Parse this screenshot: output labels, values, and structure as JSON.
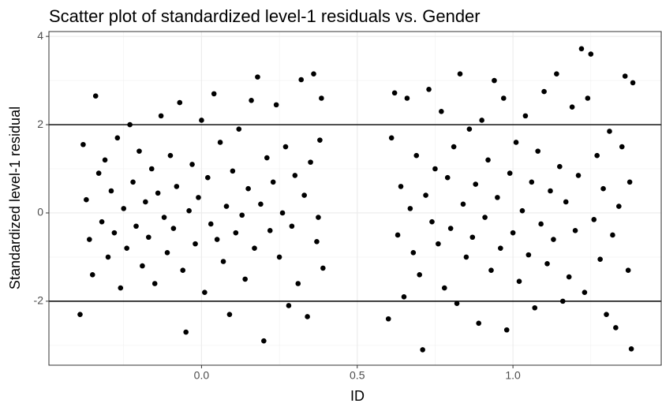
{
  "chart_data": {
    "type": "scatter",
    "title": "Scatter plot of standardized level-1 residuals vs. Gender",
    "x_label": "ID",
    "y_label": "Standardized level-1 residual",
    "color": "#000000",
    "grid": true,
    "xlim": [
      -0.49,
      1.476
    ],
    "ylim": [
      -3.45,
      4.11
    ],
    "xticks": [
      {
        "value": 0,
        "label": "0.0"
      },
      0.5,
      {
        "value": 1,
        "label": "1.0"
      }
    ],
    "yticks": [
      -2,
      0,
      2,
      4
    ],
    "xminor": [
      -0.25,
      0.25,
      0.75,
      1.25
    ],
    "yminor": [
      -3,
      -1,
      1,
      3
    ],
    "hlines": [
      -2,
      2
    ],
    "x": [
      -0.39,
      -0.38,
      -0.37,
      -0.36,
      -0.35,
      -0.34,
      -0.33,
      -0.32,
      -0.31,
      -0.3,
      -0.29,
      -0.28,
      -0.27,
      -0.26,
      -0.25,
      -0.24,
      -0.23,
      -0.22,
      -0.21,
      -0.2,
      -0.19,
      -0.18,
      -0.17,
      -0.16,
      -0.15,
      -0.14,
      -0.13,
      -0.12,
      -0.11,
      -0.1,
      -0.09,
      -0.08,
      -0.07,
      -0.06,
      -0.05,
      -0.04,
      -0.03,
      -0.02,
      -0.01,
      0.0,
      0.01,
      0.02,
      0.03,
      0.04,
      0.05,
      0.06,
      0.07,
      0.08,
      0.09,
      0.1,
      0.11,
      0.12,
      0.13,
      0.14,
      0.15,
      0.16,
      0.17,
      0.18,
      0.19,
      0.2,
      0.21,
      0.22,
      0.23,
      0.24,
      0.25,
      0.26,
      0.27,
      0.28,
      0.29,
      0.3,
      0.31,
      0.32,
      0.33,
      0.34,
      0.35,
      0.36,
      0.37,
      0.38,
      0.39,
      0.385,
      0.375,
      0.6,
      0.61,
      0.62,
      0.63,
      0.64,
      0.65,
      0.66,
      0.67,
      0.68,
      0.69,
      0.7,
      0.71,
      0.72,
      0.73,
      0.74,
      0.75,
      0.76,
      0.77,
      0.78,
      0.79,
      0.8,
      0.81,
      0.82,
      0.83,
      0.84,
      0.85,
      0.86,
      0.87,
      0.88,
      0.89,
      0.9,
      0.91,
      0.92,
      0.93,
      0.94,
      0.95,
      0.96,
      0.97,
      0.98,
      0.99,
      1.0,
      1.01,
      1.02,
      1.03,
      1.04,
      1.05,
      1.06,
      1.07,
      1.08,
      1.09,
      1.1,
      1.11,
      1.12,
      1.13,
      1.14,
      1.15,
      1.16,
      1.17,
      1.18,
      1.19,
      1.2,
      1.21,
      1.22,
      1.23,
      1.24,
      1.25,
      1.26,
      1.27,
      1.28,
      1.29,
      1.3,
      1.31,
      1.32,
      1.33,
      1.34,
      1.35,
      1.36,
      1.37,
      1.38,
      1.385,
      1.375
    ],
    "y": [
      -2.3,
      1.55,
      0.3,
      -0.6,
      -1.4,
      2.65,
      0.9,
      -0.2,
      1.2,
      -1.0,
      0.5,
      -0.45,
      1.7,
      -1.7,
      0.1,
      -0.8,
      2.0,
      0.7,
      -0.3,
      1.4,
      -1.2,
      0.25,
      -0.55,
      1.0,
      -1.6,
      0.45,
      2.2,
      -0.1,
      -0.9,
      1.3,
      -0.35,
      0.6,
      2.5,
      -1.3,
      -2.7,
      0.05,
      1.1,
      -0.7,
      0.35,
      2.1,
      -1.8,
      0.8,
      -0.25,
      2.7,
      -0.6,
      1.6,
      -1.1,
      0.15,
      -2.3,
      0.95,
      -0.45,
      1.9,
      -0.05,
      -1.5,
      0.55,
      2.55,
      -0.8,
      3.08,
      0.2,
      -2.9,
      1.25,
      -0.4,
      0.7,
      2.45,
      -1.0,
      0.0,
      1.5,
      -2.1,
      -0.3,
      0.85,
      -1.6,
      3.02,
      0.4,
      -2.35,
      1.15,
      3.15,
      -0.65,
      1.65,
      -1.25,
      2.6,
      -0.1,
      -2.4,
      1.7,
      2.72,
      -0.5,
      0.6,
      -1.9,
      2.6,
      0.1,
      -0.9,
      1.3,
      -1.4,
      -3.1,
      0.4,
      2.8,
      -0.2,
      1.0,
      -0.7,
      2.3,
      -1.7,
      0.8,
      -0.35,
      1.5,
      -2.05,
      3.15,
      0.2,
      -1.0,
      1.9,
      -0.55,
      0.65,
      -2.5,
      2.1,
      -0.1,
      1.2,
      -1.3,
      3.0,
      0.35,
      -0.8,
      2.6,
      -2.65,
      0.9,
      -0.45,
      1.6,
      -1.55,
      0.05,
      2.2,
      -0.95,
      0.7,
      -2.15,
      1.4,
      -0.25,
      2.75,
      -1.15,
      0.5,
      -0.6,
      3.15,
      1.05,
      -2.0,
      0.25,
      -1.45,
      2.4,
      -0.4,
      0.85,
      3.72,
      -1.8,
      2.6,
      3.6,
      -0.15,
      1.3,
      -1.05,
      0.55,
      -2.3,
      1.85,
      -0.5,
      -2.6,
      0.15,
      1.5,
      3.1,
      -1.3,
      -3.08,
      2.95,
      0.7
    ]
  }
}
